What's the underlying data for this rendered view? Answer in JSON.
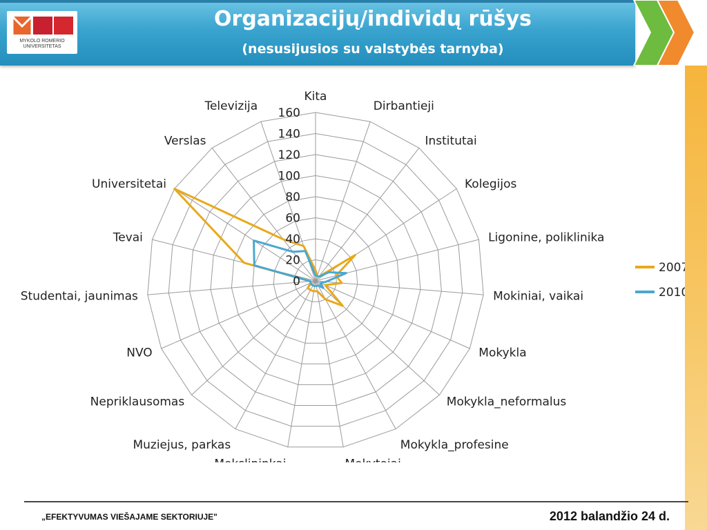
{
  "header": {
    "title": "Organizacijų/individų rūšys",
    "subtitle": "(nesusijusios su valstybės tarnyba)",
    "logo_caption_1": "MYKOLO ROMERIO",
    "logo_caption_2": "UNIVERSITETAS",
    "logo_letters": "MRU",
    "colors": {
      "header": "#3aa4cf",
      "arrow_green": "#6dbb3f",
      "arrow_orange": "#f08a2c",
      "side_bar": "#f6b53c"
    }
  },
  "footer": {
    "left_text": "„EFEKTYVUMAS VIEŠAJAME SEKTORIUJE\"",
    "right_text": "2012 balandžio 24 d."
  },
  "chart_data": {
    "type": "radar",
    "categories": [
      "Kita",
      "Dirbantieji",
      "Institutai",
      "Kolegijos",
      "Ligonine, poliklinika",
      "Mokiniai, vaikai",
      "Mokykla",
      "Mokykla_neformalus",
      "Mokykla_profesine",
      "Mokytojai",
      "Mokslininkai",
      "Muziejus, parkas",
      "Nepriklausomas",
      "NVO",
      "Studentai, jaunimas",
      "Tevai",
      "Universitetai",
      "Verslas",
      "Televizija"
    ],
    "ticks": [
      "0",
      "20",
      "40",
      "60",
      "80",
      "100",
      "120",
      "140",
      "160"
    ],
    "rmax": 160,
    "series": [
      {
        "name": "2007",
        "color": "#e8a91a",
        "values": [
          10,
          5,
          5,
          45,
          20,
          25,
          10,
          35,
          20,
          10,
          10,
          10,
          10,
          5,
          5,
          70,
          160,
          50,
          35
        ]
      },
      {
        "name": "2010",
        "color": "#4aa8cf",
        "values": [
          5,
          5,
          5,
          15,
          30,
          10,
          5,
          10,
          5,
          5,
          5,
          5,
          5,
          5,
          5,
          60,
          70,
          35,
          30
        ]
      }
    ],
    "legend_position": "right",
    "grid": true
  }
}
